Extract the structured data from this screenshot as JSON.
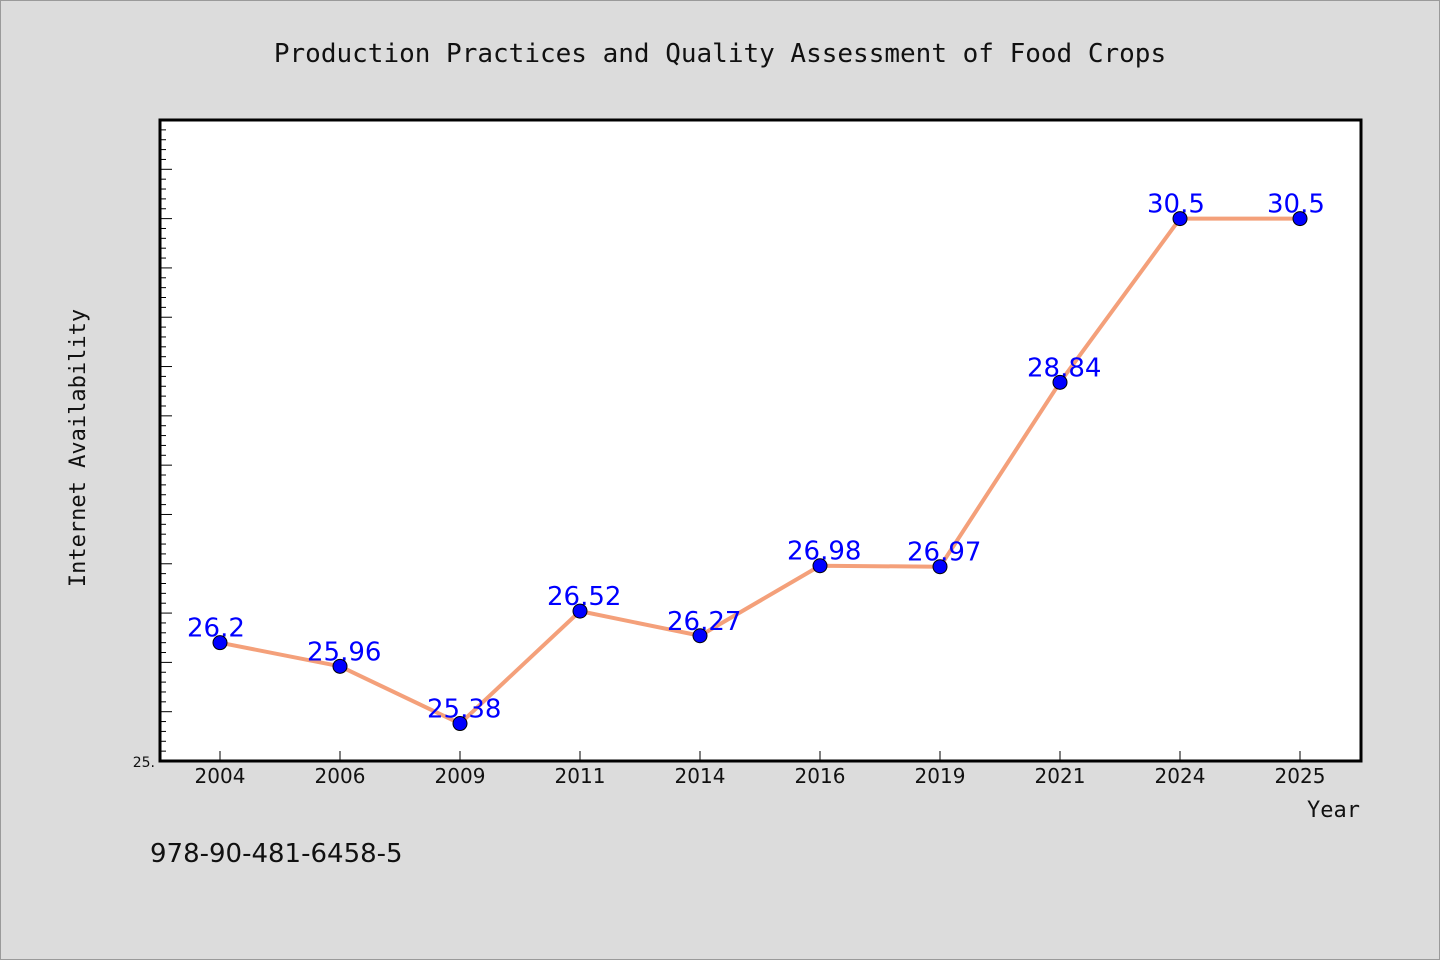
{
  "chart_data": {
    "type": "line",
    "title": "Production Practices and Quality Assessment of Food Crops",
    "xlabel": "Year",
    "ylabel": "Internet Availability",
    "categories": [
      "2004",
      "2006",
      "2009",
      "2011",
      "2014",
      "2016",
      "2019",
      "2021",
      "2024",
      "2025"
    ],
    "series": [
      {
        "values": [
          26.2,
          25.96,
          25.38,
          26.52,
          26.27,
          26.98,
          26.97,
          28.84,
          30.5,
          30.5
        ]
      }
    ],
    "data_labels": [
      "26.2",
      "25.96",
      "25.38",
      "26.52",
      "26.27",
      "26.98",
      "26.97",
      "28.84",
      "30.5",
      "30.5"
    ],
    "ylim": [
      25.0,
      31.5
    ],
    "y_min_label": "25.",
    "grid": false,
    "line_color": "#f4a07a",
    "marker_color": "#0000ff",
    "label_color": "#0000ff",
    "legend": "none"
  },
  "footer": {
    "identifier": "978-90-481-6458-5"
  }
}
